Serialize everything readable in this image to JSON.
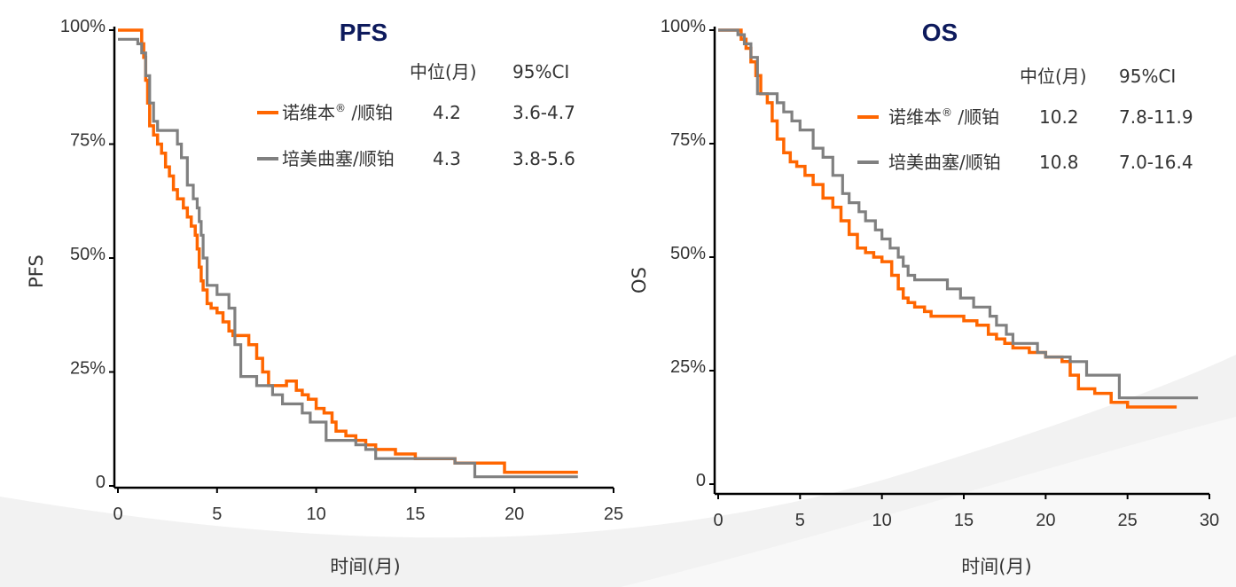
{
  "colors": {
    "series_a": "#ff6600",
    "series_b": "#808080",
    "axis": "#000000",
    "title": "#0d1a5c",
    "text": "#333333",
    "swoosh": "#eeeeee"
  },
  "chart_data": [
    {
      "type": "line",
      "title": "PFS",
      "ylabel": "PFS",
      "xlabel": "时间(月)",
      "xlim": [
        0,
        25
      ],
      "ylim": [
        0,
        100
      ],
      "xticks": [
        "0",
        "5",
        "10",
        "15",
        "20",
        "25"
      ],
      "yticks": [
        "0",
        "25%",
        "50%",
        "75%",
        "100%"
      ],
      "legend": {
        "header_median": "中位(月)",
        "header_ci": "95%CI",
        "rows": [
          {
            "name": "诺维本",
            "mark": "®",
            "suffix": " /顺铂",
            "median": "4.2",
            "ci": "3.6-4.7"
          },
          {
            "name": "培美曲塞/顺铂",
            "mark": "",
            "suffix": "",
            "median": "4.3",
            "ci": "3.8-5.6"
          }
        ]
      },
      "series": [
        {
          "name": "诺维本®/顺铂",
          "x": [
            0,
            1.0,
            1.2,
            1.3,
            1.4,
            1.5,
            1.6,
            1.8,
            2.0,
            2.2,
            2.4,
            2.6,
            2.8,
            3.0,
            3.3,
            3.5,
            3.7,
            3.9,
            4.0,
            4.1,
            4.2,
            4.3,
            4.5,
            4.7,
            5.0,
            5.3,
            5.6,
            5.8,
            6.0,
            6.3,
            6.6,
            7.0,
            7.3,
            7.6,
            8.0,
            8.5,
            9.0,
            9.3,
            9.6,
            10.0,
            10.4,
            10.8,
            11.0,
            11.5,
            12.0,
            12.5,
            13.0,
            13.5,
            14.0,
            14.5,
            15.0,
            16.0,
            17.0,
            18.0,
            19.0,
            19.5,
            20.0,
            21.0,
            23.2
          ],
          "y": [
            100,
            100,
            97,
            94,
            89,
            84,
            79,
            77,
            75,
            73,
            70,
            68,
            65,
            63,
            61,
            59,
            57,
            55,
            52,
            48,
            45,
            43,
            40,
            39,
            38,
            36,
            34,
            33,
            33,
            33,
            31,
            28,
            25,
            22,
            22,
            23,
            21,
            20,
            19,
            17,
            16,
            14,
            12,
            11,
            10,
            9,
            8,
            8,
            7,
            7,
            6,
            6,
            5,
            5,
            5,
            3,
            3,
            3,
            3
          ]
        },
        {
          "name": "培美曲塞/顺铂",
          "x": [
            0,
            0.3,
            0.8,
            1.0,
            1.2,
            1.4,
            1.6,
            1.8,
            2.0,
            2.6,
            3.0,
            3.2,
            3.5,
            3.8,
            4.0,
            4.1,
            4.2,
            4.3,
            4.5,
            5.0,
            5.6,
            5.9,
            6.2,
            7.0,
            7.4,
            7.8,
            8.3,
            9.0,
            9.3,
            9.7,
            10.5,
            11.0,
            11.5,
            12.0,
            12.5,
            13.0,
            14.0,
            15.0,
            16.0,
            17.0,
            18.0,
            19.5,
            21.0,
            23.2
          ],
          "y": [
            98,
            98,
            98,
            97,
            95,
            90,
            84,
            80,
            78,
            78,
            75,
            72,
            66,
            63,
            61,
            58,
            55,
            50,
            44,
            42,
            39,
            31,
            24,
            22,
            22,
            20,
            18,
            18,
            16,
            14,
            10,
            10,
            10,
            9,
            8,
            6,
            6,
            6,
            6,
            5,
            2,
            2,
            2,
            2
          ]
        }
      ]
    },
    {
      "type": "line",
      "title": "OS",
      "ylabel": "OS",
      "xlabel": "时间(月)",
      "xlim": [
        0,
        30
      ],
      "ylim": [
        0,
        100
      ],
      "xticks": [
        "0",
        "5",
        "10",
        "15",
        "20",
        "25",
        "30"
      ],
      "yticks": [
        "0",
        "25%",
        "50%",
        "75%",
        "100%"
      ],
      "legend": {
        "header_median": "中位(月)",
        "header_ci": "95%CI",
        "rows": [
          {
            "name": "诺维本",
            "mark": "®",
            "suffix": " /顺铂",
            "median": "10.2",
            "ci": "7.8-11.9"
          },
          {
            "name": "培美曲塞/顺铂",
            "mark": "",
            "suffix": "",
            "median": "10.8",
            "ci": "7.0-16.4"
          }
        ]
      },
      "series": [
        {
          "name": "诺维本®/顺铂",
          "x": [
            0,
            1.0,
            1.4,
            1.7,
            2.0,
            2.3,
            2.6,
            3.0,
            3.3,
            3.6,
            4.0,
            4.4,
            4.8,
            5.3,
            5.8,
            6.4,
            7.0,
            7.5,
            8.0,
            8.5,
            9.0,
            9.5,
            10.0,
            10.6,
            11.0,
            11.3,
            11.6,
            12.0,
            12.6,
            13.0,
            14.0,
            15.0,
            15.8,
            16.5,
            17.0,
            17.5,
            18.0,
            19.0,
            20.0,
            21.0,
            21.5,
            22.0,
            23.0,
            24.0,
            25.0,
            28.0
          ],
          "y": [
            100,
            100,
            98,
            96,
            93,
            90,
            86,
            84,
            80,
            76,
            73,
            71,
            70,
            68,
            66,
            63,
            61,
            58,
            55,
            52,
            51,
            50,
            49,
            46,
            43,
            41,
            40,
            39,
            38,
            37,
            37,
            36,
            35,
            33,
            32,
            31,
            30,
            29,
            28,
            27,
            24,
            21,
            20,
            18,
            17,
            17
          ]
        },
        {
          "name": "培美曲塞/顺铂",
          "x": [
            0,
            1.2,
            1.6,
            2.0,
            2.4,
            3.0,
            3.6,
            4.0,
            4.5,
            5.0,
            5.8,
            6.4,
            7.0,
            7.6,
            8.0,
            8.6,
            9.0,
            9.6,
            10.0,
            10.5,
            11.0,
            11.3,
            11.6,
            12.0,
            14.0,
            14.8,
            15.6,
            16.6,
            17.0,
            17.6,
            18.0,
            19.5,
            20.0,
            21.0,
            21.5,
            22.5,
            24.0,
            24.5,
            26.0,
            29.3
          ],
          "y": [
            100,
            99,
            97,
            94,
            86,
            86,
            84,
            82,
            80,
            78,
            74,
            72,
            68,
            64,
            62,
            60,
            58,
            56,
            54,
            52,
            50,
            48,
            46,
            45,
            43,
            41,
            39,
            37,
            35,
            33,
            31,
            29,
            28,
            28,
            27,
            24,
            24,
            19,
            19,
            19
          ]
        }
      ]
    }
  ]
}
